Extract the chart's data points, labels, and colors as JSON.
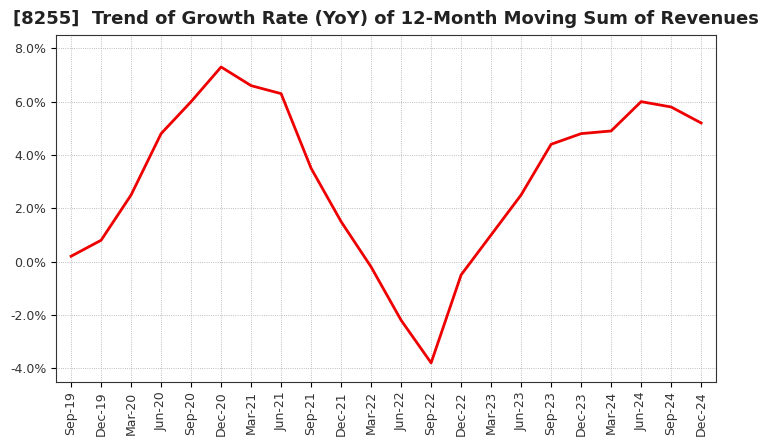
{
  "title": "[8255]  Trend of Growth Rate (YoY) of 12-Month Moving Sum of Revenues",
  "line_color": "#ee0000",
  "background_color": "#ffffff",
  "grid_color": "#aaaaaa",
  "ylim": [
    -0.045,
    0.085
  ],
  "yticks": [
    -0.04,
    -0.02,
    0.0,
    0.02,
    0.04,
    0.06,
    0.08
  ],
  "ytick_labels": [
    "-4.0%",
    "-2.0%",
    "0.0%",
    "2.0%",
    "4.0%",
    "6.0%",
    "8.0%"
  ],
  "dates": [
    "Sep-19",
    "Dec-19",
    "Mar-20",
    "Jun-20",
    "Sep-20",
    "Dec-20",
    "Mar-21",
    "Jun-21",
    "Sep-21",
    "Dec-21",
    "Mar-22",
    "Jun-22",
    "Sep-22",
    "Dec-22",
    "Mar-23",
    "Jun-23",
    "Sep-23",
    "Dec-23",
    "Mar-24",
    "Jun-24",
    "Sep-24",
    "Dec-24"
  ],
  "values": [
    0.002,
    0.008,
    0.025,
    0.048,
    0.06,
    0.073,
    0.066,
    0.063,
    0.035,
    0.015,
    -0.002,
    -0.022,
    -0.038,
    -0.005,
    0.01,
    0.025,
    0.044,
    0.048,
    0.049,
    0.06,
    0.058,
    0.052
  ],
  "title_fontsize": 13,
  "tick_fontsize": 9,
  "line_width": 2.0
}
